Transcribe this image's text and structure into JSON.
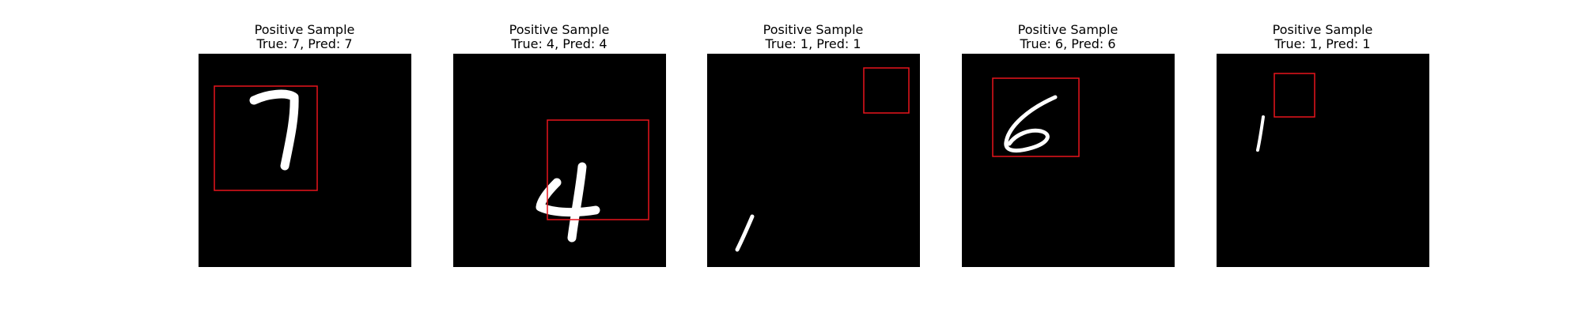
{
  "chart_data": [
    {
      "type": "image",
      "title_line1": "Positive Sample",
      "title_line2": "True: 7, Pred: 7",
      "true_label": 7,
      "pred_label": 7,
      "image": "black image with a white handwritten digit 7",
      "box_color": "#e8141c"
    },
    {
      "type": "image",
      "title_line1": "Positive Sample",
      "title_line2": "True: 4, Pred: 4",
      "true_label": 4,
      "pred_label": 4,
      "image": "black image with a white handwritten digit 4",
      "box_color": "#e8141c"
    },
    {
      "type": "image",
      "title_line1": "Positive Sample",
      "title_line2": "True: 1, Pred: 1",
      "true_label": 1,
      "pred_label": 1,
      "image": "black image with a white handwritten digit 1",
      "box_color": "#e8141c"
    },
    {
      "type": "image",
      "title_line1": "Positive Sample",
      "title_line2": "True: 6, Pred: 6",
      "true_label": 6,
      "pred_label": 6,
      "image": "black image with a white handwritten digit 6",
      "box_color": "#e8141c"
    },
    {
      "type": "image",
      "title_line1": "Positive Sample",
      "title_line2": "True: 1, Pred: 1",
      "true_label": 1,
      "pred_label": 1,
      "image": "black image with a white handwritten digit 1",
      "box_color": "#e8141c"
    }
  ],
  "colors": {
    "background": "#ffffff",
    "image_background": "#000000",
    "digit": "#ffffff",
    "box": "#e8141c"
  }
}
